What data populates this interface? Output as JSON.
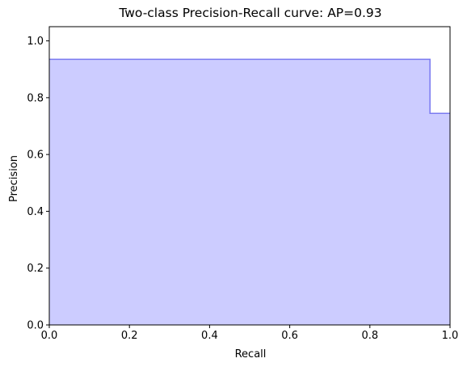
{
  "chart_data": {
    "type": "area",
    "title": "Two-class Precision-Recall curve: AP=0.93",
    "xlabel": "Recall",
    "ylabel": "Precision",
    "xlim": [
      0.0,
      1.0
    ],
    "ylim": [
      0.0,
      1.05
    ],
    "x_ticks": [
      0.0,
      0.2,
      0.4,
      0.6,
      0.8,
      1.0
    ],
    "x_tick_labels": [
      "0.0",
      "0.2",
      "0.4",
      "0.6",
      "0.8",
      "1.0"
    ],
    "y_ticks": [
      0.0,
      0.2,
      0.4,
      0.6,
      0.8,
      1.0
    ],
    "y_tick_labels": [
      "0.0",
      "0.2",
      "0.4",
      "0.6",
      "0.8",
      "1.0"
    ],
    "grid": false,
    "step": "post",
    "series": [
      {
        "recall": [
          0.0,
          0.95,
          0.95,
          1.0
        ],
        "precision": [
          0.935,
          0.935,
          0.745,
          0.745
        ],
        "line_color": "#7a7af0",
        "fill_color": "#ccccff"
      }
    ]
  }
}
